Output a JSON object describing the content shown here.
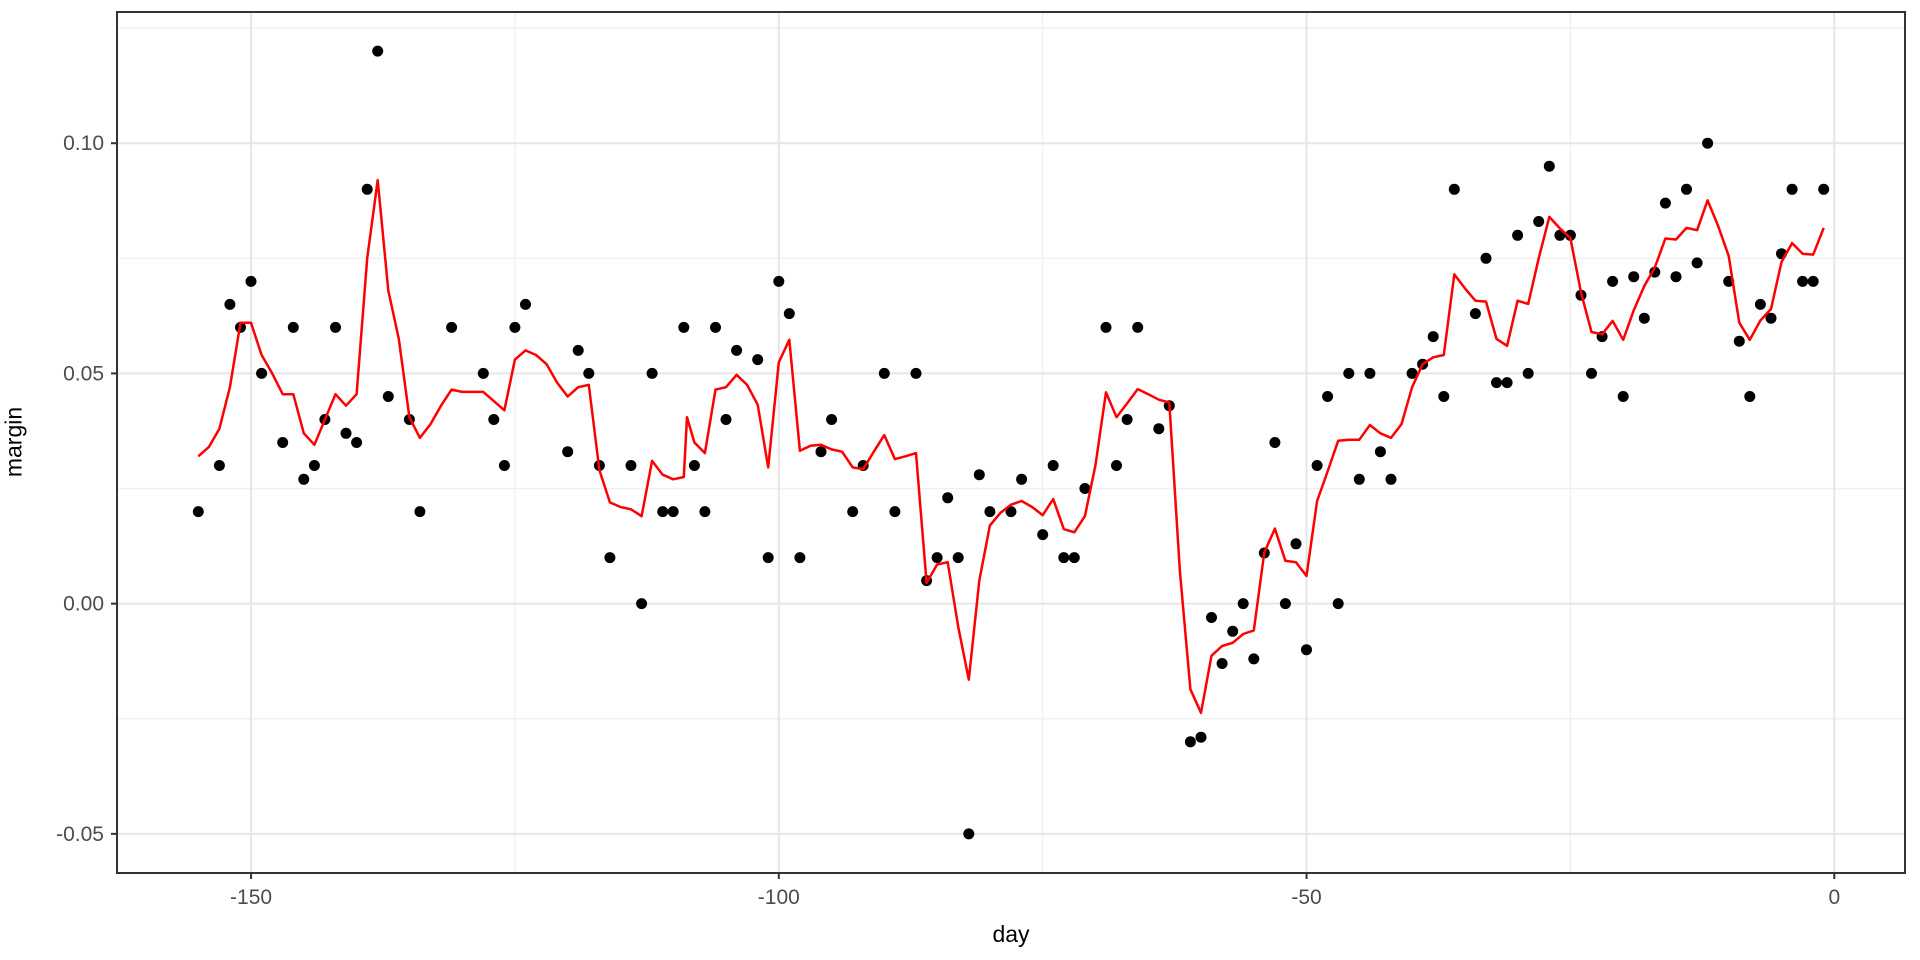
{
  "figure": {
    "xlabel": "day",
    "ylabel": "margin",
    "colors": {
      "background": "#FFFFFF",
      "panel_background": "#FFFFFF",
      "panel_border": "#333333",
      "grid_major": "#E6E6E6",
      "grid_minor": "#F0F0F0",
      "tick": "#333333",
      "tick_label": "#4D4D4D",
      "axis_title": "#000000",
      "point": "#000000",
      "line": "#FF0000"
    }
  },
  "chart_data": {
    "type": "scatter",
    "title": "",
    "xlabel": "day",
    "ylabel": "margin",
    "xlim": [
      -162.7,
      6.7
    ],
    "ylim": [
      -0.0585,
      0.1285
    ],
    "grid": "major+minor",
    "legend": "none",
    "x_ticks": {
      "values": [
        -150,
        -100,
        -50,
        0
      ],
      "labels": [
        "-150",
        "-100",
        "-50",
        "0"
      ],
      "minor": [
        -125,
        -75,
        -25
      ]
    },
    "y_ticks": {
      "values": [
        0.1,
        0.05,
        0.0,
        -0.05
      ],
      "labels": [
        "0.10",
        "0.05",
        "0.00",
        "-0.05"
      ],
      "minor": [
        0.125,
        0.075,
        0.025,
        -0.025
      ]
    },
    "series": [
      {
        "name": "daily margin points",
        "type": "scatter",
        "color": "#000000",
        "marker_radius": 5.5,
        "points": [
          [
            -155,
            0.02
          ],
          [
            -153,
            0.03
          ],
          [
            -152,
            0.065
          ],
          [
            -151,
            0.06
          ],
          [
            -150,
            0.07
          ],
          [
            -149,
            0.05
          ],
          [
            -147,
            0.035
          ],
          [
            -146,
            0.06
          ],
          [
            -145,
            0.027
          ],
          [
            -144,
            0.03
          ],
          [
            -143,
            0.04
          ],
          [
            -142,
            0.06
          ],
          [
            -141,
            0.037
          ],
          [
            -140,
            0.035
          ],
          [
            -139,
            0.09
          ],
          [
            -138,
            0.12
          ],
          [
            -137,
            0.045
          ],
          [
            -135,
            0.04
          ],
          [
            -134,
            0.02
          ],
          [
            -131,
            0.06
          ],
          [
            -128,
            0.05
          ],
          [
            -127,
            0.04
          ],
          [
            -126,
            0.03
          ],
          [
            -125,
            0.06
          ],
          [
            -124,
            0.065
          ],
          [
            -120,
            0.033
          ],
          [
            -119,
            0.055
          ],
          [
            -118,
            0.05
          ],
          [
            -117,
            0.03
          ],
          [
            -116,
            0.01
          ],
          [
            -114,
            0.03
          ],
          [
            -113,
            0.0
          ],
          [
            -112,
            0.05
          ],
          [
            -111,
            0.02
          ],
          [
            -110,
            0.02
          ],
          [
            -109,
            0.06
          ],
          [
            -108,
            0.03
          ],
          [
            -107,
            0.02
          ],
          [
            -106,
            0.06
          ],
          [
            -105,
            0.04
          ],
          [
            -104,
            0.055
          ],
          [
            -102,
            0.053
          ],
          [
            -101,
            0.01
          ],
          [
            -100,
            0.07
          ],
          [
            -99,
            0.063
          ],
          [
            -98,
            0.01
          ],
          [
            -96,
            0.033
          ],
          [
            -95,
            0.04
          ],
          [
            -93,
            0.02
          ],
          [
            -92,
            0.03
          ],
          [
            -90,
            0.05
          ],
          [
            -89,
            0.02
          ],
          [
            -87,
            0.05
          ],
          [
            -86,
            0.005
          ],
          [
            -85,
            0.01
          ],
          [
            -84,
            0.023
          ],
          [
            -83,
            0.01
          ],
          [
            -82,
            -0.05
          ],
          [
            -81,
            0.028
          ],
          [
            -80,
            0.02
          ],
          [
            -78,
            0.02
          ],
          [
            -77,
            0.027
          ],
          [
            -75,
            0.015
          ],
          [
            -74,
            0.03
          ],
          [
            -73,
            0.01
          ],
          [
            -72,
            0.01
          ],
          [
            -71,
            0.025
          ],
          [
            -69,
            0.06
          ],
          [
            -68,
            0.03
          ],
          [
            -67,
            0.04
          ],
          [
            -66,
            0.06
          ],
          [
            -64,
            0.038
          ],
          [
            -63,
            0.043
          ],
          [
            -61,
            -0.03
          ],
          [
            -60,
            -0.029
          ],
          [
            -59,
            -0.003
          ],
          [
            -58,
            -0.013
          ],
          [
            -57,
            -0.006
          ],
          [
            -56,
            0.0
          ],
          [
            -55,
            -0.012
          ],
          [
            -54,
            0.011
          ],
          [
            -53,
            0.035
          ],
          [
            -52,
            0.0
          ],
          [
            -51,
            0.013
          ],
          [
            -50,
            -0.01
          ],
          [
            -49,
            0.03
          ],
          [
            -48,
            0.045
          ],
          [
            -47,
            0.0
          ],
          [
            -46,
            0.05
          ],
          [
            -45,
            0.027
          ],
          [
            -44,
            0.05
          ],
          [
            -43,
            0.033
          ],
          [
            -42,
            0.027
          ],
          [
            -40,
            0.05
          ],
          [
            -39,
            0.052
          ],
          [
            -38,
            0.058
          ],
          [
            -37,
            0.045
          ],
          [
            -36,
            0.09
          ],
          [
            -34,
            0.063
          ],
          [
            -33,
            0.075
          ],
          [
            -32,
            0.048
          ],
          [
            -31,
            0.048
          ],
          [
            -30,
            0.08
          ],
          [
            -29,
            0.05
          ],
          [
            -28,
            0.083
          ],
          [
            -27,
            0.095
          ],
          [
            -26,
            0.08
          ],
          [
            -25,
            0.08
          ],
          [
            -24,
            0.067
          ],
          [
            -23,
            0.05
          ],
          [
            -22,
            0.058
          ],
          [
            -21,
            0.07
          ],
          [
            -20,
            0.045
          ],
          [
            -19,
            0.071
          ],
          [
            -18,
            0.062
          ],
          [
            -17,
            0.072
          ],
          [
            -16,
            0.087
          ],
          [
            -15,
            0.071
          ],
          [
            -14,
            0.09
          ],
          [
            -13,
            0.074
          ],
          [
            -12,
            0.1
          ],
          [
            -10,
            0.07
          ],
          [
            -9,
            0.057
          ],
          [
            -8,
            0.045
          ],
          [
            -7,
            0.065
          ],
          [
            -6,
            0.062
          ],
          [
            -5,
            0.076
          ],
          [
            -4,
            0.09
          ],
          [
            -3,
            0.07
          ],
          [
            -2,
            0.07
          ],
          [
            -1,
            0.09
          ]
        ]
      },
      {
        "name": "smoothed margin line",
        "type": "line",
        "color": "#FF0000",
        "stroke_width": 2.5,
        "points": [
          [
            -155,
            0.032
          ],
          [
            -154,
            0.034
          ],
          [
            -153,
            0.038
          ],
          [
            -152,
            0.047
          ],
          [
            -151,
            0.061
          ],
          [
            -150,
            0.061
          ],
          [
            -149,
            0.054
          ],
          [
            -148,
            0.05
          ],
          [
            -147,
            0.0455
          ],
          [
            -146,
            0.0455
          ],
          [
            -145,
            0.037
          ],
          [
            -144,
            0.0345
          ],
          [
            -143,
            0.04
          ],
          [
            -142,
            0.0455
          ],
          [
            -141,
            0.043
          ],
          [
            -140,
            0.0455
          ],
          [
            -139,
            0.075
          ],
          [
            -138,
            0.092
          ],
          [
            -137,
            0.068
          ],
          [
            -136,
            0.0575
          ],
          [
            -135,
            0.0405
          ],
          [
            -134,
            0.036
          ],
          [
            -133,
            0.039
          ],
          [
            -132,
            0.043
          ],
          [
            -131,
            0.0465
          ],
          [
            -130,
            0.046
          ],
          [
            -129,
            0.046
          ],
          [
            -128,
            0.046
          ],
          [
            -127,
            0.044
          ],
          [
            -126,
            0.042
          ],
          [
            -125,
            0.053
          ],
          [
            -124,
            0.055
          ],
          [
            -123,
            0.054
          ],
          [
            -122,
            0.052
          ],
          [
            -121,
            0.048
          ],
          [
            -120,
            0.045
          ],
          [
            -119,
            0.047
          ],
          [
            -118,
            0.0475
          ],
          [
            -117,
            0.029
          ],
          [
            -116,
            0.022
          ],
          [
            -115,
            0.021
          ],
          [
            -114,
            0.0205
          ],
          [
            -113,
            0.019
          ],
          [
            -112,
            0.031
          ],
          [
            -111,
            0.028
          ],
          [
            -110,
            0.027
          ],
          [
            -109,
            0.0275
          ],
          [
            -108.7,
            0.0405
          ],
          [
            -108,
            0.035
          ],
          [
            -107,
            0.0327
          ],
          [
            -106,
            0.0465
          ],
          [
            -105,
            0.047
          ],
          [
            -104,
            0.0497
          ],
          [
            -103,
            0.0475
          ],
          [
            -102,
            0.0432
          ],
          [
            -101,
            0.0296
          ],
          [
            -100,
            0.0524
          ],
          [
            -99,
            0.0573
          ],
          [
            -98,
            0.0332
          ],
          [
            -97,
            0.0343
          ],
          [
            -96,
            0.0345
          ],
          [
            -95,
            0.0335
          ],
          [
            -94,
            0.033
          ],
          [
            -93,
            0.0296
          ],
          [
            -92,
            0.0292
          ],
          [
            -91,
            0.033
          ],
          [
            -90,
            0.0366
          ],
          [
            -89,
            0.0314
          ],
          [
            -88,
            0.032
          ],
          [
            -87,
            0.0327
          ],
          [
            -86,
            0.0045
          ],
          [
            -85,
            0.0085
          ],
          [
            -84,
            0.009
          ],
          [
            -83,
            -0.005
          ],
          [
            -82,
            -0.0165
          ],
          [
            -81,
            0.005
          ],
          [
            -80,
            0.017
          ],
          [
            -79,
            0.0197
          ],
          [
            -78,
            0.0215
          ],
          [
            -77,
            0.0223
          ],
          [
            -76,
            0.021
          ],
          [
            -75,
            0.0192
          ],
          [
            -74,
            0.0227
          ],
          [
            -73,
            0.0162
          ],
          [
            -72,
            0.0155
          ],
          [
            -71,
            0.019
          ],
          [
            -70,
            0.03
          ],
          [
            -69,
            0.0459
          ],
          [
            -68,
            0.0405
          ],
          [
            -67,
            0.0435
          ],
          [
            -66,
            0.0466
          ],
          [
            -65,
            0.0455
          ],
          [
            -64,
            0.0443
          ],
          [
            -63,
            0.0437
          ],
          [
            -62,
            0.007
          ],
          [
            -61,
            -0.0186
          ],
          [
            -60,
            -0.0237
          ],
          [
            -59,
            -0.0113
          ],
          [
            -58,
            -0.0092
          ],
          [
            -57,
            -0.0085
          ],
          [
            -56,
            -0.0066
          ],
          [
            -55,
            -0.0058
          ],
          [
            -54,
            0.0111
          ],
          [
            -53,
            0.0163
          ],
          [
            -52,
            0.0093
          ],
          [
            -51,
            0.009
          ],
          [
            -50,
            0.006
          ],
          [
            -49,
            0.0223
          ],
          [
            -48,
            0.0287
          ],
          [
            -47,
            0.0354
          ],
          [
            -46,
            0.0356
          ],
          [
            -45,
            0.0356
          ],
          [
            -44,
            0.0388
          ],
          [
            -43,
            0.037
          ],
          [
            -42,
            0.036
          ],
          [
            -41,
            0.039
          ],
          [
            -40,
            0.047
          ],
          [
            -39,
            0.052
          ],
          [
            -38,
            0.0535
          ],
          [
            -37,
            0.054
          ],
          [
            -36,
            0.0715
          ],
          [
            -35,
            0.0685
          ],
          [
            -34,
            0.0658
          ],
          [
            -33,
            0.0656
          ],
          [
            -32,
            0.0575
          ],
          [
            -31,
            0.056
          ],
          [
            -30,
            0.0658
          ],
          [
            -29,
            0.0651
          ],
          [
            -28,
            0.075
          ],
          [
            -27,
            0.084
          ],
          [
            -26,
            0.0815
          ],
          [
            -25,
            0.0794
          ],
          [
            -24,
            0.0676
          ],
          [
            -23,
            0.059
          ],
          [
            -22,
            0.0585
          ],
          [
            -21,
            0.0614
          ],
          [
            -20,
            0.0573
          ],
          [
            -19,
            0.0637
          ],
          [
            -18,
            0.069
          ],
          [
            -17,
            0.073
          ],
          [
            -16,
            0.0793
          ],
          [
            -15,
            0.0791
          ],
          [
            -14,
            0.0816
          ],
          [
            -13,
            0.0811
          ],
          [
            -12,
            0.0876
          ],
          [
            -11,
            0.082
          ],
          [
            -10,
            0.0755
          ],
          [
            -9,
            0.061
          ],
          [
            -8,
            0.0573
          ],
          [
            -7,
            0.0615
          ],
          [
            -6,
            0.064
          ],
          [
            -5,
            0.0742
          ],
          [
            -4,
            0.0783
          ],
          [
            -3,
            0.076
          ],
          [
            -2,
            0.0758
          ],
          [
            -1,
            0.0816
          ]
        ]
      }
    ]
  }
}
